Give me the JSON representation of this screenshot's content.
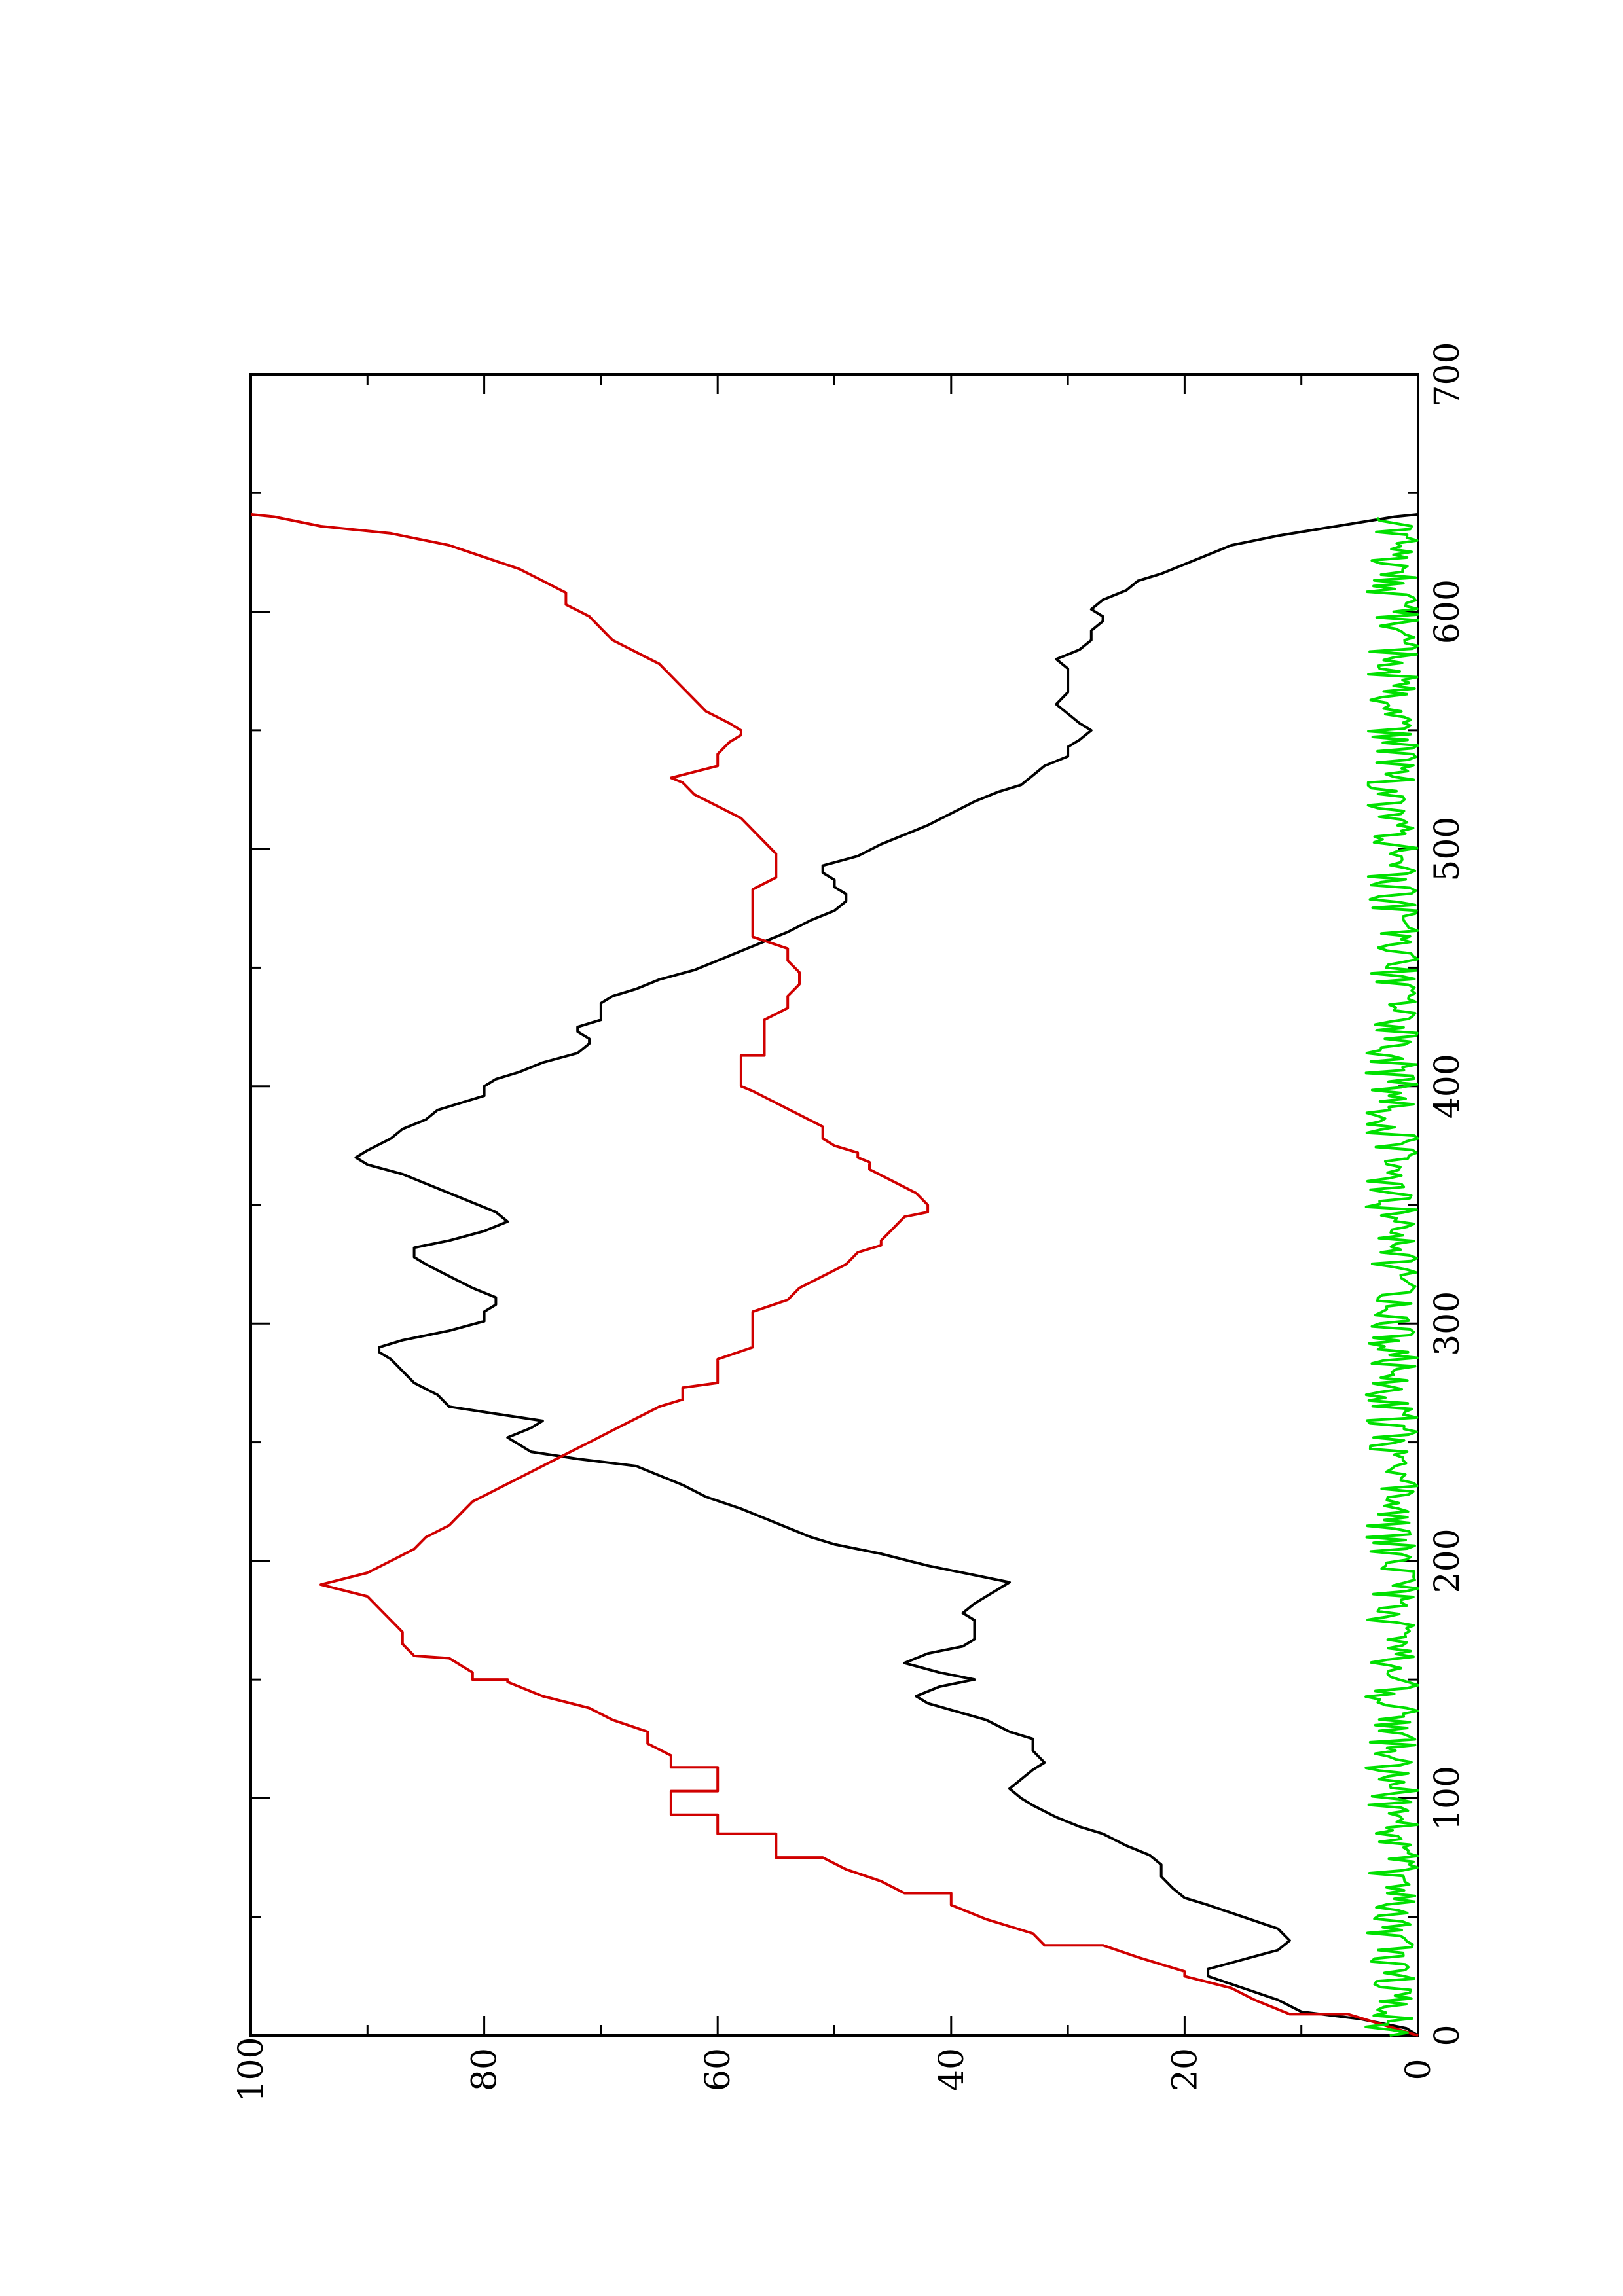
{
  "chart_data": {
    "type": "line",
    "orientation": "rotated 90 degrees counter-clockwise",
    "title": "",
    "xlabel": "",
    "ylabel": "",
    "xlim": [
      0,
      700
    ],
    "ylim": [
      0,
      100
    ],
    "x_major_ticks": [
      0,
      100,
      200,
      300,
      400,
      500,
      600,
      700
    ],
    "x_tick_labels": [
      "0",
      "100",
      "200",
      "300",
      "400",
      "500",
      "600",
      "700"
    ],
    "x_minor_ticks": [
      50,
      150,
      250,
      350,
      450,
      550,
      650
    ],
    "y_major_ticks": [
      0,
      20,
      40,
      60,
      80,
      100
    ],
    "y_tick_labels": [
      "0",
      "20",
      "40",
      "60",
      "80",
      "100"
    ],
    "y_minor_ticks": [
      10,
      30,
      50,
      70,
      90
    ],
    "grid": false,
    "legend": "none",
    "series": [
      {
        "color": "#000000",
        "points": [
          [
            0,
            0
          ],
          [
            3,
            1
          ],
          [
            7,
            5
          ],
          [
            10,
            10
          ],
          [
            15,
            12
          ],
          [
            20,
            15
          ],
          [
            25,
            18
          ],
          [
            28,
            18
          ],
          [
            32,
            15
          ],
          [
            36,
            12
          ],
          [
            40,
            11
          ],
          [
            45,
            12
          ],
          [
            50,
            15
          ],
          [
            55,
            18
          ],
          [
            58,
            20
          ],
          [
            62,
            21
          ],
          [
            67,
            22
          ],
          [
            72,
            22
          ],
          [
            76,
            23
          ],
          [
            80,
            25
          ],
          [
            85,
            27
          ],
          [
            88,
            29
          ],
          [
            92,
            31
          ],
          [
            97,
            33
          ],
          [
            100,
            34
          ],
          [
            104,
            35
          ],
          [
            108,
            34
          ],
          [
            112,
            33
          ],
          [
            115,
            32
          ],
          [
            120,
            33
          ],
          [
            125,
            33
          ],
          [
            128,
            35
          ],
          [
            133,
            37
          ],
          [
            140,
            42
          ],
          [
            143,
            43
          ],
          [
            147,
            41
          ],
          [
            150,
            38
          ],
          [
            153,
            41
          ],
          [
            157,
            44
          ],
          [
            161,
            42
          ],
          [
            164,
            39
          ],
          [
            167,
            38
          ],
          [
            172,
            38
          ],
          [
            175,
            38
          ],
          [
            178,
            39
          ],
          [
            182,
            38
          ],
          [
            185,
            37
          ],
          [
            188,
            36
          ],
          [
            191,
            35
          ],
          [
            194,
            38
          ],
          [
            198,
            42
          ],
          [
            203,
            46
          ],
          [
            207,
            50
          ],
          [
            210,
            52
          ],
          [
            214,
            54
          ],
          [
            218,
            56
          ],
          [
            222,
            58
          ],
          [
            227,
            61
          ],
          [
            232,
            63
          ],
          [
            236,
            65
          ],
          [
            240,
            67
          ],
          [
            243,
            72
          ],
          [
            246,
            76
          ],
          [
            249,
            77
          ],
          [
            252,
            78
          ],
          [
            256,
            76
          ],
          [
            259,
            75
          ],
          [
            262,
            79
          ],
          [
            265,
            83
          ],
          [
            270,
            84
          ],
          [
            275,
            86
          ],
          [
            280,
            87
          ],
          [
            285,
            88
          ],
          [
            288,
            89
          ],
          [
            290,
            89
          ],
          [
            293,
            87
          ],
          [
            297,
            83
          ],
          [
            301,
            80
          ],
          [
            305,
            80
          ],
          [
            308,
            79
          ],
          [
            311,
            79
          ],
          [
            315,
            81
          ],
          [
            320,
            83
          ],
          [
            325,
            85
          ],
          [
            328,
            86
          ],
          [
            332,
            86
          ],
          [
            335,
            83
          ],
          [
            339,
            80
          ],
          [
            343,
            78
          ],
          [
            347,
            79
          ],
          [
            351,
            81
          ],
          [
            355,
            83
          ],
          [
            359,
            85
          ],
          [
            363,
            87
          ],
          [
            367,
            90
          ],
          [
            370,
            91
          ],
          [
            373,
            90
          ],
          [
            378,
            88
          ],
          [
            382,
            87
          ],
          [
            386,
            85
          ],
          [
            390,
            84
          ],
          [
            393,
            82
          ],
          [
            396,
            80
          ],
          [
            400,
            80
          ],
          [
            403,
            79
          ],
          [
            406,
            77
          ],
          [
            410,
            75
          ],
          [
            414,
            72
          ],
          [
            418,
            71
          ],
          [
            420,
            71
          ],
          [
            423,
            72
          ],
          [
            425,
            72
          ],
          [
            428,
            70
          ],
          [
            431,
            70
          ],
          [
            435,
            70
          ],
          [
            438,
            69
          ],
          [
            441,
            67
          ],
          [
            445,
            65
          ],
          [
            449,
            62
          ],
          [
            453,
            60
          ],
          [
            457,
            58
          ],
          [
            461,
            56
          ],
          [
            465,
            54
          ],
          [
            470,
            52
          ],
          [
            474,
            50
          ],
          [
            478,
            49
          ],
          [
            481,
            49
          ],
          [
            484,
            50
          ],
          [
            487,
            50
          ],
          [
            490,
            51
          ],
          [
            493,
            51
          ],
          [
            497,
            48
          ],
          [
            502,
            46
          ],
          [
            506,
            44
          ],
          [
            510,
            42
          ],
          [
            515,
            40
          ],
          [
            520,
            38
          ],
          [
            524,
            36
          ],
          [
            527,
            34
          ],
          [
            531,
            33
          ],
          [
            535,
            32
          ],
          [
            539,
            30
          ],
          [
            543,
            30
          ],
          [
            546,
            29
          ],
          [
            550,
            28
          ],
          [
            553,
            29
          ],
          [
            557,
            30
          ],
          [
            561,
            31
          ],
          [
            566,
            30
          ],
          [
            571,
            30
          ],
          [
            576,
            30
          ],
          [
            580,
            31
          ],
          [
            584,
            29
          ],
          [
            588,
            28
          ],
          [
            592,
            28
          ],
          [
            596,
            27
          ],
          [
            598,
            27
          ],
          [
            601,
            28
          ],
          [
            605,
            27
          ],
          [
            609,
            25
          ],
          [
            613,
            24
          ],
          [
            616,
            22
          ],
          [
            620,
            20
          ],
          [
            624,
            18
          ],
          [
            628,
            16
          ],
          [
            632,
            12
          ],
          [
            636,
            7
          ],
          [
            640,
            2
          ],
          [
            641,
            0
          ]
        ]
      },
      {
        "color": "#d00000",
        "points": [
          [
            0,
            0
          ],
          [
            3,
            2
          ],
          [
            6,
            4
          ],
          [
            9,
            6
          ],
          [
            9,
            11
          ],
          [
            15,
            14
          ],
          [
            20,
            16
          ],
          [
            25,
            20
          ],
          [
            27,
            20
          ],
          [
            33,
            24
          ],
          [
            38,
            27
          ],
          [
            38,
            32
          ],
          [
            43,
            33
          ],
          [
            49,
            37
          ],
          [
            55,
            40
          ],
          [
            60,
            40
          ],
          [
            60,
            44
          ],
          [
            65,
            46
          ],
          [
            70,
            49
          ],
          [
            75,
            51
          ],
          [
            75,
            55
          ],
          [
            80,
            55
          ],
          [
            85,
            55
          ],
          [
            85,
            60
          ],
          [
            90,
            60
          ],
          [
            93,
            60
          ],
          [
            93,
            64
          ],
          [
            98,
            64
          ],
          [
            103,
            64
          ],
          [
            103,
            60
          ],
          [
            108,
            60
          ],
          [
            113,
            60
          ],
          [
            113,
            64
          ],
          [
            118,
            64
          ],
          [
            123,
            66
          ],
          [
            128,
            66
          ],
          [
            133,
            69
          ],
          [
            138,
            71
          ],
          [
            143,
            75
          ],
          [
            149,
            78
          ],
          [
            150,
            78
          ],
          [
            150,
            81
          ],
          [
            153,
            81
          ],
          [
            159,
            83
          ],
          [
            160,
            86
          ],
          [
            165,
            87
          ],
          [
            170,
            87
          ],
          [
            175,
            88
          ],
          [
            180,
            89
          ],
          [
            185,
            90
          ],
          [
            190,
            94
          ],
          [
            195,
            90
          ],
          [
            200,
            88
          ],
          [
            205,
            86
          ],
          [
            210,
            85
          ],
          [
            215,
            83
          ],
          [
            220,
            82
          ],
          [
            225,
            81
          ],
          [
            230,
            79
          ],
          [
            235,
            77
          ],
          [
            240,
            75
          ],
          [
            245,
            73
          ],
          [
            250,
            71
          ],
          [
            255,
            69
          ],
          [
            260,
            67
          ],
          [
            265,
            65
          ],
          [
            268,
            63
          ],
          [
            270,
            63
          ],
          [
            273,
            63
          ],
          [
            275,
            60
          ],
          [
            280,
            60
          ],
          [
            285,
            60
          ],
          [
            290,
            57
          ],
          [
            295,
            57
          ],
          [
            300,
            57
          ],
          [
            305,
            57
          ],
          [
            310,
            54
          ],
          [
            315,
            53
          ],
          [
            320,
            51
          ],
          [
            325,
            49
          ],
          [
            330,
            48
          ],
          [
            333,
            46
          ],
          [
            335,
            46
          ],
          [
            340,
            45
          ],
          [
            345,
            44
          ],
          [
            347,
            42
          ],
          [
            350,
            42
          ],
          [
            355,
            43
          ],
          [
            360,
            45
          ],
          [
            365,
            47
          ],
          [
            368,
            47
          ],
          [
            370,
            48
          ],
          [
            372,
            48
          ],
          [
            375,
            50
          ],
          [
            378,
            51
          ],
          [
            383,
            51
          ],
          [
            388,
            53
          ],
          [
            393,
            55
          ],
          [
            398,
            57
          ],
          [
            400,
            58
          ],
          [
            403,
            58
          ],
          [
            408,
            58
          ],
          [
            413,
            58
          ],
          [
            413,
            56
          ],
          [
            418,
            56
          ],
          [
            423,
            56
          ],
          [
            428,
            56
          ],
          [
            433,
            54
          ],
          [
            438,
            54
          ],
          [
            443,
            53
          ],
          [
            448,
            53
          ],
          [
            453,
            54
          ],
          [
            458,
            54
          ],
          [
            463,
            57
          ],
          [
            468,
            57
          ],
          [
            473,
            57
          ],
          [
            478,
            57
          ],
          [
            483,
            57
          ],
          [
            488,
            55
          ],
          [
            493,
            55
          ],
          [
            498,
            55
          ],
          [
            503,
            56
          ],
          [
            508,
            57
          ],
          [
            513,
            58
          ],
          [
            518,
            60
          ],
          [
            523,
            62
          ],
          [
            528,
            63
          ],
          [
            530,
            64
          ],
          [
            535,
            60
          ],
          [
            540,
            60
          ],
          [
            545,
            59
          ],
          [
            548,
            58
          ],
          [
            550,
            58
          ],
          [
            553,
            59
          ],
          [
            558,
            61
          ],
          [
            563,
            62
          ],
          [
            568,
            63
          ],
          [
            573,
            64
          ],
          [
            578,
            65
          ],
          [
            583,
            67
          ],
          [
            588,
            69
          ],
          [
            593,
            70
          ],
          [
            598,
            71
          ],
          [
            603,
            73
          ],
          [
            608,
            73
          ],
          [
            613,
            75
          ],
          [
            618,
            77
          ],
          [
            623,
            80
          ],
          [
            628,
            83
          ],
          [
            633,
            88
          ],
          [
            636,
            94
          ],
          [
            640,
            98
          ],
          [
            641,
            100
          ]
        ]
      },
      {
        "color": "#00e000",
        "noise_band": {
          "x_start": 0,
          "x_end": 640,
          "y_min": 0,
          "y_max": 4.5,
          "typical": 1.5
        }
      }
    ]
  }
}
